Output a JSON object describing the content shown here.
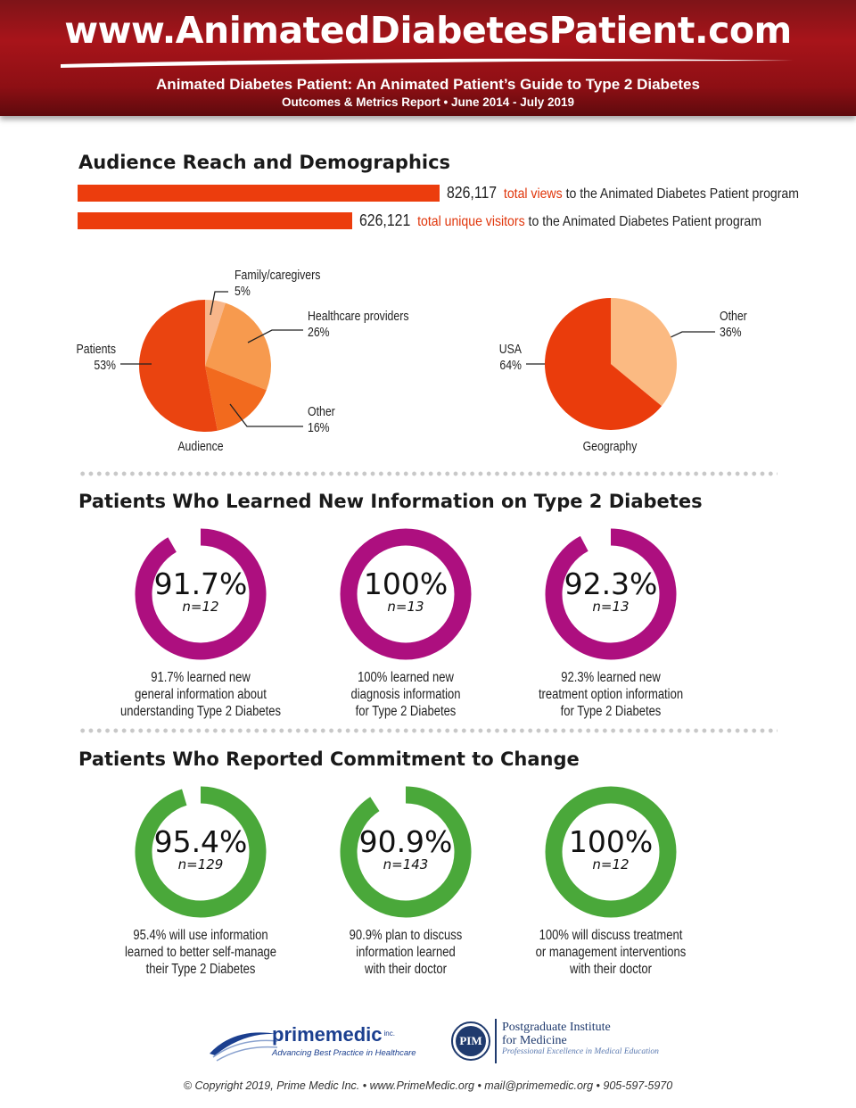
{
  "header": {
    "site_title": "www.AnimatedDiabetesPatient.com",
    "subtitle": "Animated Diabetes Patient: An Animated Patient’s Guide to Type 2 Diabetes",
    "subtitle2": "Outcomes & Metrics Report • June 2014 - July 2019",
    "background_color": "#9a1218"
  },
  "sections": {
    "audience_reach": "Audience Reach and Demographics",
    "learned": "Patients Who Learned New Information on Type 2 Diabetes",
    "commitment": "Patients Who Reported Commitment to Change"
  },
  "reach": {
    "views": {
      "number": "826,117",
      "highlight": "total views",
      "rest": "to the Animated Diabetes Patient program",
      "value": 826117
    },
    "visitors": {
      "number": "626,121",
      "highlight": "total unique visitors",
      "rest": "to the Animated Diabetes Patient program",
      "value": 626121
    },
    "bar_color": "#ec3d0d"
  },
  "chart_data": [
    {
      "type": "bar",
      "orientation": "horizontal",
      "categories": [
        "total views",
        "total unique visitors"
      ],
      "values": [
        826117,
        626121
      ]
    },
    {
      "type": "pie",
      "title": "Audience",
      "slices": [
        {
          "label": "Family/caregivers",
          "value": 5,
          "display": "5%",
          "color": "#f8b68a"
        },
        {
          "label": "Healthcare providers",
          "value": 26,
          "display": "26%",
          "color": "#f79a4e"
        },
        {
          "label": "Other",
          "value": 16,
          "display": "16%",
          "color": "#f26a1e"
        },
        {
          "label": "Patients",
          "value": 53,
          "display": "53%",
          "color": "#ea4410"
        }
      ]
    },
    {
      "type": "pie",
      "title": "Geography",
      "slices": [
        {
          "label": "Other",
          "value": 36,
          "display": "36%",
          "color": "#fbba82"
        },
        {
          "label": "USA",
          "value": 64,
          "display": "64%",
          "color": "#ea3c0c"
        }
      ]
    },
    {
      "type": "donut",
      "title": "Patients Who Learned New Information on Type 2 Diabetes",
      "color": "#ad0f7f",
      "items": [
        {
          "value": 91.7,
          "display": "91.7%",
          "n": "n=12",
          "caption": [
            "91.7% learned new",
            "general information about",
            "understanding Type 2 Diabetes"
          ]
        },
        {
          "value": 100,
          "display": "100%",
          "n": "n=13",
          "caption": [
            "100% learned new",
            "diagnosis information",
            "for Type 2 Diabetes"
          ]
        },
        {
          "value": 92.3,
          "display": "92.3%",
          "n": "n=13",
          "caption": [
            "92.3% learned new",
            "treatment option information",
            "for Type 2 Diabetes"
          ]
        }
      ]
    },
    {
      "type": "donut",
      "title": "Patients Who Reported Commitment to Change",
      "color": "#4aa83a",
      "items": [
        {
          "value": 95.4,
          "display": "95.4%",
          "n": "n=129",
          "caption": [
            "95.4% will use information",
            "learned to better self-manage",
            "their Type 2 Diabetes"
          ]
        },
        {
          "value": 90.9,
          "display": "90.9%",
          "n": "n=143",
          "caption": [
            "90.9% plan to discuss",
            "information learned",
            "with their doctor"
          ]
        },
        {
          "value": 100,
          "display": "100%",
          "n": "n=12",
          "caption": [
            "100% will discuss treatment",
            "or management interventions",
            "with their doctor"
          ]
        }
      ]
    }
  ],
  "logos": {
    "primemedic_bold": "prime",
    "primemedic_light": "medic",
    "primemedic_inc": "inc.",
    "primemedic_tagline": "Advancing Best Practice in Healthcare",
    "pim_badge": "PIM",
    "pim_name_line1": "Postgraduate Institute",
    "pim_name_line2": "for Medicine",
    "pim_tagline": "Professional Excellence in Medical Education"
  },
  "footer": "© Copyright 2019, Prime Medic Inc. • www.PrimeMedic.org • mail@primemedic.org • 905-597-5970"
}
